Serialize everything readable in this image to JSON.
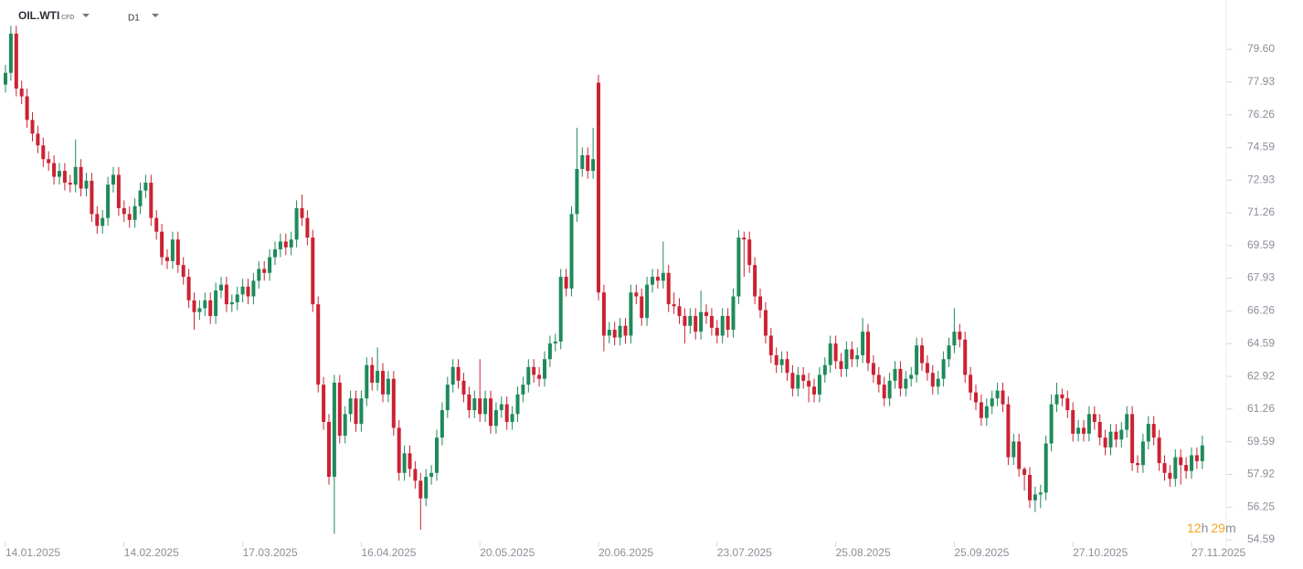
{
  "header": {
    "symbol": "OIL.WTI",
    "symbol_type": "CFD",
    "interval": "D1"
  },
  "countdown": {
    "hours": "12",
    "hours_unit": "h",
    "minutes": "29",
    "minutes_unit": "m"
  },
  "chart_data": {
    "type": "candlestick",
    "up_color": "#1f8a5b",
    "down_color": "#cc2233",
    "ylim": [
      54.59,
      79.6
    ],
    "yticks": [
      {
        "value": 79.6,
        "label": "79.60"
      },
      77.93,
      76.26,
      74.59,
      72.93,
      71.26,
      69.59,
      67.93,
      66.26,
      64.59,
      62.92,
      61.26,
      59.59,
      57.92,
      56.25,
      54.59
    ],
    "categories": [
      "14.01.2025",
      null,
      null,
      null,
      null,
      null,
      null,
      null,
      null,
      null,
      null,
      null,
      null,
      null,
      null,
      null,
      null,
      null,
      null,
      null,
      null,
      null,
      "14.02.2025",
      null,
      null,
      null,
      null,
      null,
      null,
      null,
      null,
      null,
      null,
      null,
      null,
      null,
      null,
      null,
      null,
      null,
      null,
      null,
      null,
      null,
      "17.03.2025",
      null,
      null,
      null,
      null,
      null,
      null,
      null,
      null,
      null,
      null,
      null,
      null,
      null,
      null,
      null,
      null,
      null,
      null,
      null,
      null,
      null,
      "16.04.2025",
      null,
      null,
      null,
      null,
      null,
      null,
      null,
      null,
      null,
      null,
      null,
      null,
      null,
      null,
      null,
      null,
      null,
      null,
      null,
      null,
      null,
      "20.05.2025",
      null,
      null,
      null,
      null,
      null,
      null,
      null,
      null,
      null,
      null,
      null,
      null,
      null,
      null,
      null,
      null,
      null,
      null,
      null,
      null,
      null,
      "20.06.2025",
      null,
      null,
      null,
      null,
      null,
      null,
      null,
      null,
      null,
      null,
      null,
      null,
      null,
      null,
      null,
      null,
      null,
      null,
      null,
      null,
      null,
      "23.07.2025",
      null,
      null,
      null,
      null,
      null,
      null,
      null,
      null,
      null,
      null,
      null,
      null,
      null,
      null,
      null,
      null,
      null,
      null,
      null,
      null,
      null,
      "25.08.2025",
      null,
      null,
      null,
      null,
      null,
      null,
      null,
      null,
      null,
      null,
      null,
      null,
      null,
      null,
      null,
      null,
      null,
      null,
      null,
      null,
      null,
      "25.09.2025",
      null,
      null,
      null,
      null,
      null,
      null,
      null,
      null,
      null,
      null,
      null,
      null,
      null,
      null,
      null,
      null,
      null,
      null,
      null,
      null,
      null,
      "27.10.2025",
      null,
      null,
      null,
      null,
      null,
      null,
      null,
      null,
      null,
      null,
      null,
      null,
      null,
      null,
      null,
      null,
      null,
      null,
      null,
      null,
      null,
      "27.11.2025",
      null,
      null
    ],
    "open": [
      77.8,
      78.4,
      80.4,
      77.6,
      77.2,
      76.0,
      75.3,
      74.7,
      74.0,
      73.8,
      73.1,
      73.4,
      72.8,
      72.7,
      73.6,
      72.5,
      72.9,
      71.2,
      70.6,
      71.0,
      72.7,
      73.2,
      71.5,
      71.2,
      70.9,
      71.6,
      72.4,
      72.8,
      71.0,
      70.3,
      69.0,
      68.8,
      69.9,
      68.6,
      68.0,
      66.8,
      66.2,
      66.4,
      66.8,
      66.0,
      67.3,
      67.6,
      66.6,
      66.7,
      67.1,
      67.5,
      67.0,
      67.8,
      68.4,
      68.2,
      69.0,
      69.4,
      69.8,
      69.5,
      69.9,
      71.5,
      71.0,
      70.0,
      66.6,
      62.5,
      60.6,
      57.8,
      62.6,
      59.9,
      61.0,
      61.8,
      60.5,
      61.8,
      63.5,
      62.6,
      63.2,
      62.0,
      62.8,
      60.3,
      58.0,
      59.0,
      58.2,
      57.6,
      56.7,
      57.8,
      58.0,
      59.8,
      61.2,
      62.5,
      63.4,
      62.7,
      62.0,
      61.2,
      61.8,
      61.0,
      61.8,
      60.4,
      61.2,
      61.5,
      60.6,
      61.0,
      62.0,
      62.5,
      63.4,
      63.0,
      62.8,
      63.8,
      64.6,
      64.7,
      68.0,
      67.4,
      71.2,
      73.5,
      74.2,
      73.4,
      77.9,
      67.2,
      65.0,
      65.3,
      64.9,
      65.5,
      65.0,
      67.2,
      67.0,
      65.9,
      67.6,
      68.0,
      67.8,
      68.2,
      66.6,
      66.5,
      66.0,
      65.5,
      66.0,
      65.2,
      66.2,
      66.0,
      65.4,
      65.0,
      66.0,
      65.3,
      67.0,
      70.0,
      69.9,
      68.6,
      67.0,
      66.3,
      65.0,
      64.0,
      63.5,
      63.8,
      63.1,
      62.3,
      63.0,
      62.7,
      62.4,
      62.0,
      63.0,
      63.5,
      64.6,
      63.7,
      63.3,
      64.3,
      63.8,
      64.0,
      65.2,
      63.6,
      63.0,
      62.5,
      61.8,
      62.7,
      63.3,
      62.3,
      62.8,
      63.0,
      64.5,
      63.6,
      63.1,
      62.4,
      62.8,
      63.8,
      64.5,
      65.2,
      64.8,
      63.0,
      62.1,
      61.6,
      60.8,
      61.4,
      61.8,
      62.2,
      61.5,
      58.8,
      59.6,
      58.2,
      57.9,
      56.6,
      56.9,
      57.0,
      59.5,
      61.5,
      62.0,
      61.8,
      61.2,
      60.0,
      60.3,
      60.0,
      61.0,
      60.6,
      59.8,
      59.3,
      60.1,
      59.7,
      60.2,
      61.0,
      58.5,
      58.4,
      59.6,
      60.5,
      59.8,
      58.5,
      58.0,
      57.7,
      58.8,
      58.4,
      58.1,
      58.9,
      58.6
    ],
    "high": [
      78.8,
      80.8,
      80.8,
      78.0,
      77.6,
      76.4,
      75.7,
      75.1,
      74.4,
      74.2,
      73.8,
      73.8,
      73.2,
      75.0,
      74.0,
      73.3,
      73.3,
      71.6,
      71.4,
      73.1,
      73.6,
      73.6,
      71.9,
      71.6,
      72.0,
      72.8,
      73.2,
      73.2,
      71.4,
      70.7,
      69.4,
      70.3,
      70.3,
      69.0,
      68.4,
      67.2,
      66.8,
      67.2,
      67.2,
      67.7,
      68.0,
      68.0,
      67.1,
      67.5,
      67.9,
      67.9,
      68.2,
      68.8,
      68.8,
      69.4,
      69.8,
      70.2,
      70.2,
      70.3,
      71.9,
      72.2,
      71.4,
      70.4,
      67.0,
      62.9,
      61.0,
      63.0,
      63.0,
      61.4,
      62.2,
      62.2,
      62.2,
      63.9,
      63.9,
      64.4,
      63.6,
      63.2,
      63.2,
      60.7,
      59.4,
      59.4,
      58.6,
      58.0,
      58.2,
      58.4,
      60.2,
      61.6,
      62.9,
      63.8,
      63.8,
      63.1,
      62.4,
      62.2,
      63.8,
      62.2,
      62.2,
      61.6,
      61.9,
      61.9,
      61.4,
      62.4,
      62.9,
      63.8,
      63.8,
      63.4,
      64.2,
      65.0,
      65.1,
      68.4,
      68.4,
      71.6,
      75.6,
      74.6,
      74.6,
      75.6,
      78.3,
      67.6,
      65.7,
      65.7,
      65.9,
      65.9,
      67.6,
      67.6,
      67.4,
      68.0,
      68.4,
      68.4,
      69.8,
      68.6,
      67.2,
      66.9,
      66.4,
      66.4,
      66.4,
      67.3,
      66.6,
      66.4,
      65.8,
      66.4,
      66.4,
      67.4,
      70.4,
      70.3,
      70.3,
      69.0,
      67.4,
      66.7,
      65.4,
      64.4,
      64.2,
      64.2,
      63.5,
      63.4,
      63.4,
      63.1,
      62.8,
      63.4,
      63.9,
      65.0,
      65.0,
      64.1,
      64.7,
      64.7,
      64.4,
      65.9,
      65.6,
      64.0,
      63.4,
      62.9,
      63.1,
      63.7,
      63.7,
      63.2,
      63.4,
      64.9,
      64.9,
      64.0,
      63.5,
      63.2,
      64.2,
      64.9,
      66.4,
      65.6,
      65.2,
      63.4,
      62.5,
      62.0,
      61.8,
      62.2,
      62.6,
      62.6,
      61.9,
      60.0,
      60.0,
      58.3,
      58.3,
      57.3,
      57.4,
      59.9,
      62.0,
      62.6,
      62.3,
      62.2,
      61.6,
      60.7,
      60.7,
      61.4,
      61.4,
      61.0,
      60.2,
      60.5,
      60.5,
      60.6,
      61.4,
      61.4,
      58.9,
      60.0,
      60.9,
      60.9,
      60.2,
      58.9,
      58.4,
      59.2,
      59.2,
      58.8,
      59.3,
      59.3,
      59.9
    ],
    "low": [
      77.4,
      78.0,
      77.2,
      76.8,
      75.6,
      74.9,
      74.3,
      73.6,
      73.4,
      72.7,
      72.7,
      72.4,
      72.3,
      72.3,
      72.1,
      72.1,
      70.8,
      70.2,
      70.2,
      70.6,
      72.3,
      71.1,
      70.8,
      70.5,
      70.5,
      71.2,
      72.0,
      70.6,
      69.9,
      68.6,
      68.4,
      68.4,
      68.2,
      67.6,
      66.4,
      65.3,
      65.8,
      66.0,
      65.6,
      65.6,
      66.9,
      66.2,
      66.2,
      66.3,
      66.7,
      66.6,
      66.6,
      67.4,
      67.8,
      67.8,
      68.6,
      69.0,
      69.1,
      69.1,
      69.5,
      70.6,
      69.6,
      66.2,
      62.1,
      60.2,
      57.4,
      54.9,
      59.5,
      59.5,
      60.6,
      60.1,
      60.1,
      61.4,
      62.2,
      62.2,
      61.6,
      61.6,
      59.9,
      57.6,
      57.6,
      57.8,
      57.2,
      55.1,
      56.3,
      57.4,
      57.6,
      59.4,
      60.8,
      62.1,
      62.3,
      61.6,
      60.8,
      60.8,
      60.6,
      60.6,
      60.0,
      60.0,
      60.8,
      60.2,
      60.2,
      60.6,
      61.6,
      62.1,
      62.6,
      62.4,
      62.4,
      63.4,
      64.2,
      64.3,
      67.0,
      67.0,
      70.8,
      73.1,
      73.0,
      73.0,
      66.8,
      64.2,
      64.6,
      64.5,
      64.5,
      64.6,
      64.6,
      66.6,
      65.5,
      65.5,
      67.2,
      67.4,
      67.4,
      66.2,
      66.1,
      65.6,
      64.6,
      65.1,
      64.8,
      64.8,
      65.6,
      65.0,
      64.6,
      64.6,
      64.9,
      64.9,
      66.6,
      68.0,
      68.2,
      66.6,
      65.9,
      64.6,
      63.6,
      63.1,
      63.1,
      62.7,
      61.9,
      61.9,
      62.3,
      61.6,
      61.6,
      61.6,
      62.6,
      63.1,
      63.3,
      62.9,
      62.9,
      63.4,
      63.4,
      63.6,
      63.2,
      62.6,
      62.1,
      61.4,
      61.4,
      62.3,
      61.9,
      61.9,
      62.4,
      62.6,
      63.2,
      62.7,
      62.0,
      62.0,
      62.4,
      63.4,
      64.1,
      64.4,
      62.6,
      61.7,
      61.2,
      60.4,
      60.4,
      61.0,
      61.4,
      61.1,
      58.4,
      58.4,
      57.8,
      57.1,
      56.2,
      56.0,
      56.2,
      56.6,
      59.1,
      61.1,
      61.4,
      60.8,
      59.6,
      59.6,
      59.6,
      59.6,
      60.2,
      59.4,
      58.9,
      58.9,
      59.3,
      59.3,
      59.8,
      58.1,
      58.0,
      58.0,
      59.2,
      59.4,
      58.1,
      57.6,
      57.3,
      57.3,
      57.4,
      57.7,
      57.7,
      58.2,
      58.2
    ],
    "close": [
      78.4,
      80.4,
      77.6,
      77.2,
      76.0,
      75.3,
      74.7,
      74.0,
      73.8,
      73.1,
      73.4,
      72.8,
      72.7,
      73.6,
      72.5,
      72.9,
      71.2,
      70.6,
      71.0,
      72.7,
      73.2,
      71.5,
      71.2,
      70.9,
      71.6,
      72.4,
      72.8,
      71.0,
      70.3,
      69.0,
      68.8,
      69.9,
      68.6,
      68.0,
      66.8,
      66.2,
      66.4,
      66.8,
      66.0,
      67.3,
      67.6,
      66.6,
      66.7,
      67.1,
      67.5,
      67.0,
      67.8,
      68.4,
      68.2,
      69.0,
      69.4,
      69.8,
      69.5,
      69.9,
      71.5,
      71.0,
      70.0,
      66.6,
      62.5,
      60.6,
      57.8,
      62.6,
      59.9,
      61.0,
      61.8,
      60.5,
      61.8,
      63.5,
      62.6,
      63.2,
      62.0,
      62.8,
      60.3,
      58.0,
      59.0,
      58.2,
      57.6,
      56.7,
      57.8,
      58.0,
      59.8,
      61.2,
      62.5,
      63.4,
      62.7,
      62.0,
      61.2,
      61.8,
      61.0,
      61.8,
      60.4,
      61.2,
      61.5,
      60.6,
      61.0,
      62.0,
      62.5,
      63.4,
      63.0,
      62.8,
      63.8,
      64.6,
      64.7,
      68.0,
      67.4,
      71.2,
      73.5,
      74.2,
      73.4,
      74.0,
      67.2,
      65.0,
      65.3,
      64.9,
      65.5,
      65.0,
      67.2,
      67.0,
      65.9,
      67.6,
      68.0,
      67.8,
      68.2,
      66.6,
      66.5,
      66.0,
      65.5,
      66.0,
      65.2,
      66.2,
      66.0,
      65.4,
      65.0,
      66.0,
      65.3,
      67.0,
      70.0,
      69.9,
      68.6,
      67.0,
      66.3,
      65.0,
      64.0,
      63.5,
      63.8,
      63.1,
      62.3,
      63.0,
      62.7,
      62.4,
      62.0,
      63.0,
      63.5,
      64.6,
      63.7,
      63.3,
      64.3,
      63.8,
      64.0,
      65.2,
      63.6,
      63.0,
      62.5,
      61.8,
      62.7,
      63.3,
      62.3,
      62.8,
      63.0,
      64.5,
      63.6,
      63.1,
      62.4,
      62.8,
      63.8,
      64.5,
      65.2,
      64.8,
      63.0,
      62.1,
      61.6,
      60.8,
      61.4,
      61.8,
      62.2,
      61.5,
      58.8,
      59.6,
      58.2,
      57.9,
      56.6,
      56.9,
      57.0,
      59.5,
      61.5,
      62.0,
      61.8,
      61.2,
      60.0,
      60.3,
      60.0,
      61.0,
      60.6,
      59.8,
      59.3,
      60.1,
      59.7,
      60.2,
      61.0,
      58.5,
      58.4,
      59.6,
      60.5,
      59.8,
      58.5,
      58.0,
      57.7,
      58.8,
      58.4,
      58.1,
      58.9,
      58.6,
      59.4
    ]
  }
}
